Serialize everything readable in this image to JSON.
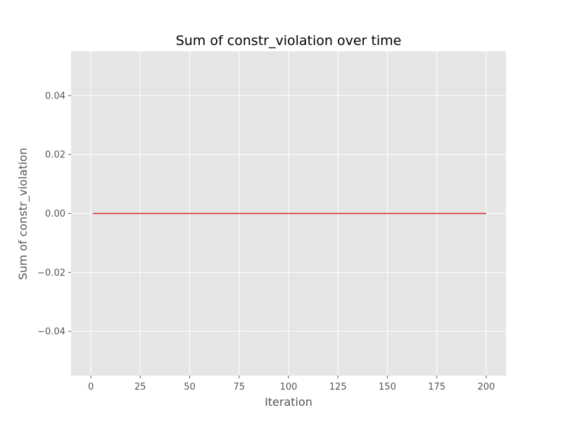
{
  "chart_data": {
    "type": "line",
    "title": "Sum of constr_violation over time",
    "xlabel": "Iteration",
    "ylabel": "Sum of constr_violation",
    "xlim": [
      -10,
      210
    ],
    "ylim": [
      -0.055,
      0.055
    ],
    "x_ticks": [
      0,
      25,
      50,
      75,
      100,
      125,
      150,
      175,
      200
    ],
    "x_tick_labels": [
      "0",
      "25",
      "50",
      "75",
      "100",
      "125",
      "150",
      "175",
      "200"
    ],
    "y_ticks": [
      -0.04,
      -0.02,
      0.0,
      0.02,
      0.04
    ],
    "y_tick_labels": [
      "−0.04",
      "−0.02",
      "0.00",
      "0.02",
      "0.04"
    ],
    "grid": true,
    "style": "ggplot",
    "colors": {
      "background": "#e5e5e5",
      "grid": "#ffffff",
      "line": "#d62728"
    },
    "series": [
      {
        "x": [
          1,
          200
        ],
        "y": [
          0.0,
          0.0
        ]
      }
    ]
  }
}
